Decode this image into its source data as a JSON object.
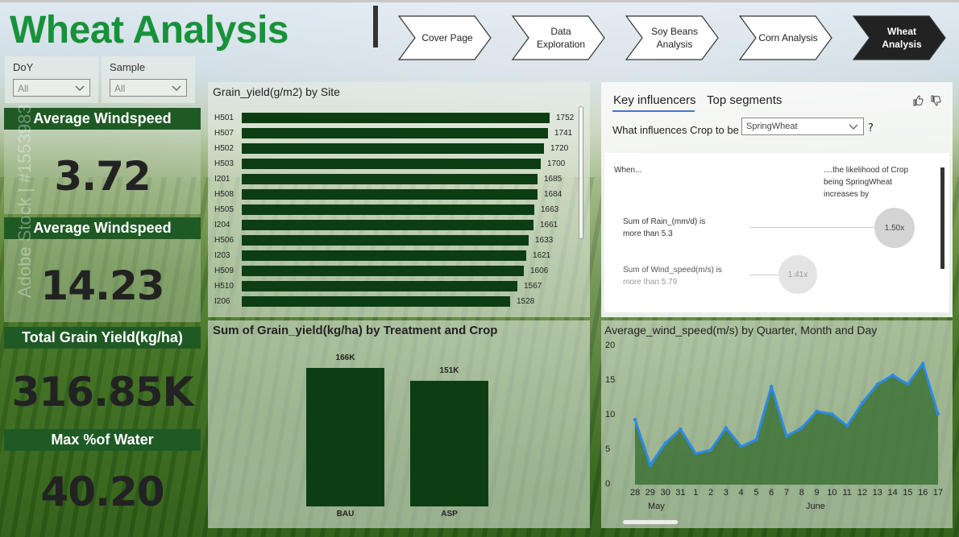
{
  "page": {
    "title": "Wheat Analysis"
  },
  "nav": [
    {
      "label": "Cover Page",
      "active": false
    },
    {
      "label": "Data Exploration",
      "active": false
    },
    {
      "label": "Soy Beans Analysis",
      "active": false
    },
    {
      "label": "Corn Analysis",
      "active": false
    },
    {
      "label": "Wheat Analysis",
      "active": true
    }
  ],
  "slicers": [
    {
      "label": "DoY",
      "value": "All"
    },
    {
      "label": "Sample",
      "value": "All"
    }
  ],
  "kpis": [
    {
      "label": "Average Windspeed",
      "value": "3.72"
    },
    {
      "label": "Average Windspeed",
      "value": "14.23"
    },
    {
      "label": "Total Grain Yield(kg/ha)",
      "value": "316.85K"
    },
    {
      "label": "Max %of Water",
      "value": "40.20"
    }
  ],
  "watermark": "Adobe Stock | #1553983",
  "colors": {
    "title_green": "#18923a",
    "bar_green": "#0d3d12",
    "kpi_header": "#1f5a25",
    "line_blue": "#2b8ae6",
    "area_green": "#2f6a2a",
    "accent_underline": "#3a7bd5"
  },
  "key_influencers": {
    "tabs": [
      "Key influencers",
      "Top segments"
    ],
    "question": "What influences Crop to be",
    "dropdown_value": "SpringWheat",
    "question_mark": "?",
    "when_label": "When...",
    "likelihood_line1": "....the likelihood of Crop",
    "likelihood_line2": "being SpringWheat",
    "likelihood_line3": "increases by",
    "rows": [
      {
        "line1": "Sum of Rain_(mm/d) is",
        "line2": "more than 5.3",
        "factor": "1.50x"
      },
      {
        "line1": "Sum of Wind_speed(m/s) is",
        "line2": "more than 5.79",
        "factor": "1.41x"
      }
    ]
  },
  "chart_data": [
    {
      "type": "bar",
      "orientation": "horizontal",
      "title": "Grain_yield(g/m2) by Site",
      "categories": [
        "H501",
        "H507",
        "H502",
        "H503",
        "I201",
        "H508",
        "H505",
        "I204",
        "H506",
        "I203",
        "H509",
        "H510",
        "I206"
      ],
      "values": [
        1752,
        1741,
        1720,
        1700,
        1685,
        1684,
        1663,
        1661,
        1633,
        1621,
        1606,
        1567,
        1528
      ],
      "xlim": [
        0,
        1752
      ],
      "grid": false
    },
    {
      "type": "bar",
      "title": "Sum of Grain_yield(kg/ha) by Treatment and Crop",
      "categories": [
        "BAU",
        "ASP"
      ],
      "values": [
        166000,
        151000
      ],
      "data_labels": [
        "166K",
        "151K"
      ],
      "ylim": [
        0,
        166000
      ],
      "grid": false
    },
    {
      "type": "area",
      "title": "Average_wind_speed(m/s) by Quarter, Month and Day",
      "x": [
        "28",
        "29",
        "30",
        "31",
        "1",
        "2",
        "3",
        "4",
        "5",
        "6",
        "7",
        "8",
        "9",
        "10",
        "11",
        "12",
        "13",
        "14",
        "15",
        "16",
        "17"
      ],
      "values": [
        9.4,
        2.8,
        6.0,
        8.0,
        4.5,
        5.0,
        8.2,
        5.5,
        6.5,
        14.2,
        7.0,
        8.2,
        10.6,
        10.2,
        8.5,
        11.8,
        14.5,
        15.8,
        14.5,
        17.5,
        10.2
      ],
      "month_labels": [
        "May",
        "June"
      ],
      "yticks": [
        "0",
        "5",
        "10",
        "15",
        "20"
      ],
      "ylim": [
        0,
        20
      ],
      "grid": false
    }
  ]
}
